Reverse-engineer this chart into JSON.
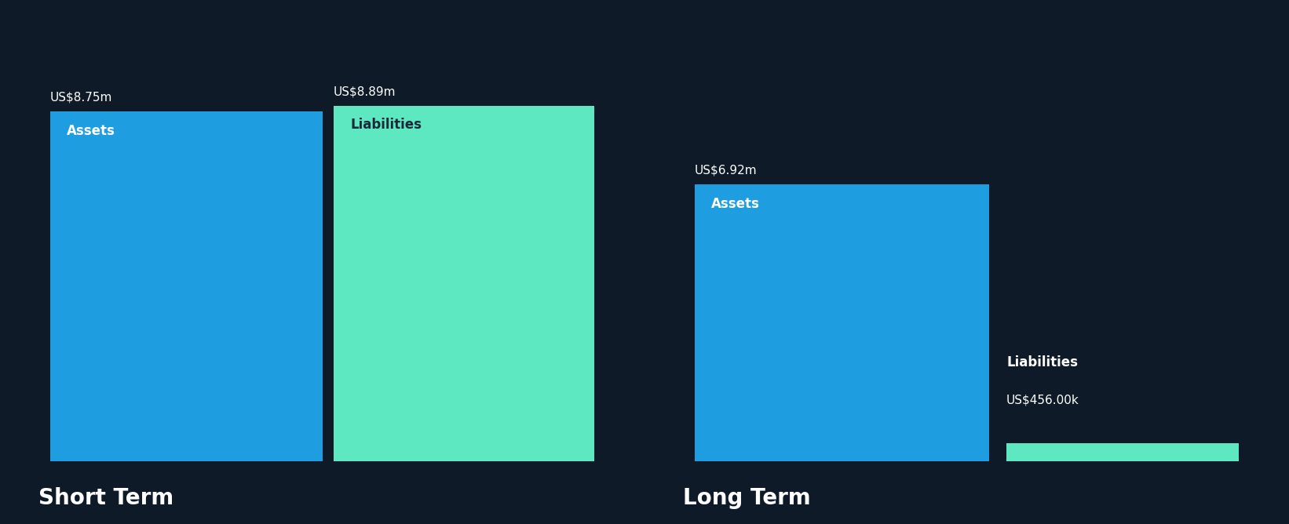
{
  "background_color": "#0e1a27",
  "short_term": {
    "assets_value": 8.75,
    "liabilities_value": 8.89,
    "assets_label": "Assets",
    "liabilities_label": "Liabilities",
    "assets_value_label": "US$8.75m",
    "liabilities_value_label": "US$8.89m",
    "assets_color": "#1e9de0",
    "liabilities_color": "#5de8c1"
  },
  "long_term": {
    "assets_value": 6.92,
    "liabilities_value": 0.456,
    "assets_label": "Assets",
    "liabilities_label": "Liabilities",
    "assets_value_label": "US$6.92m",
    "liabilities_value_label": "US$456.00k",
    "assets_color": "#1e9de0",
    "liabilities_color": "#5de8c1"
  },
  "short_term_label": "Short Term",
  "long_term_label": "Long Term",
  "value_label_fontsize": 11,
  "bar_label_fontsize": 12,
  "title_fontsize": 20,
  "text_color": "#ffffff",
  "label_dark_color": "#1a2a38"
}
